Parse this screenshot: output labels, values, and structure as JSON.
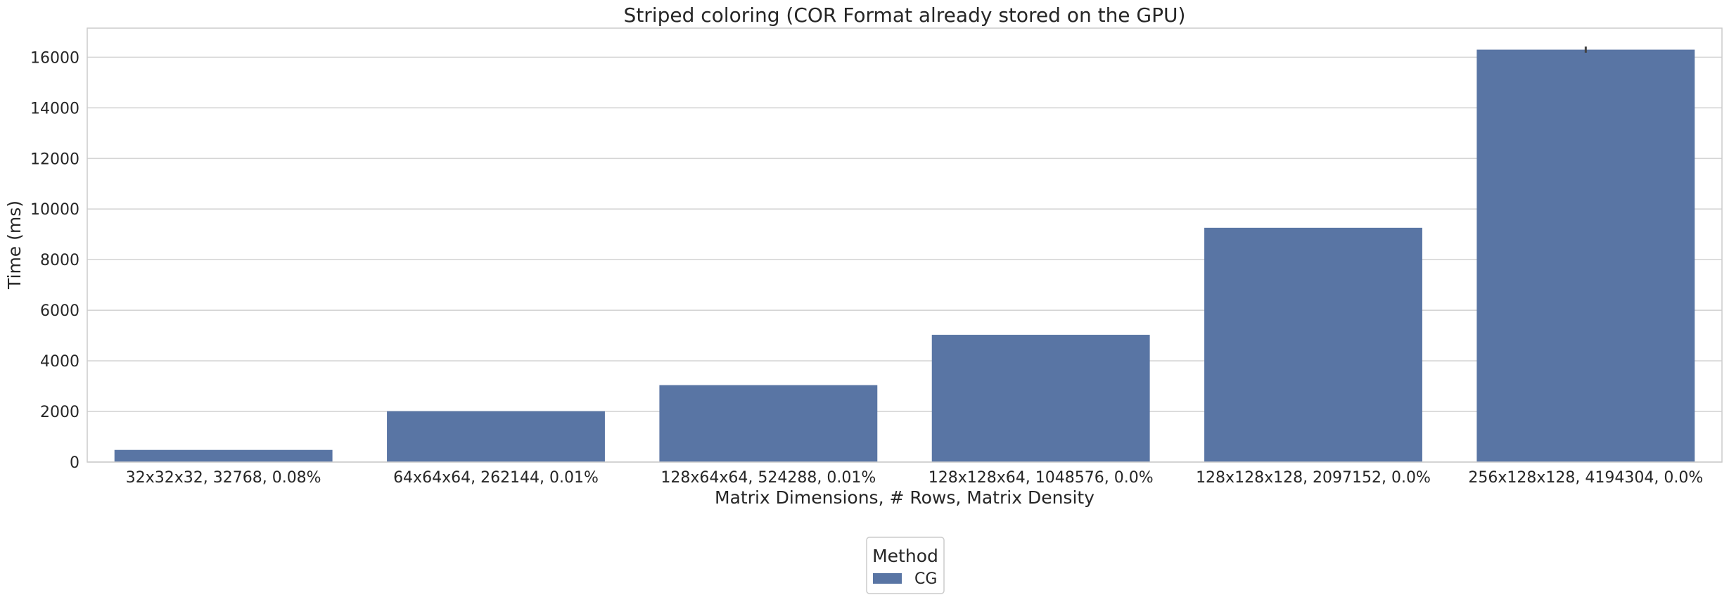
{
  "chart_data": {
    "type": "bar",
    "title": "Striped coloring (COR Format already stored on the GPU)",
    "xlabel": "Matrix Dimensions, # Rows, Matrix Density",
    "ylabel": "Time (ms)",
    "categories": [
      "32x32x32, 32768, 0.08%",
      "64x64x64, 262144, 0.01%",
      "128x64x64, 524288, 0.01%",
      "128x128x64, 1048576, 0.0%",
      "128x128x128, 2097152, 0.0%",
      "256x128x128, 4194304, 0.0%"
    ],
    "series": [
      {
        "name": "CG",
        "values": [
          480,
          2010,
          3040,
          5030,
          9260,
          16300
        ],
        "error": [
          0,
          0,
          0,
          0,
          0,
          120
        ],
        "color": "#5975a4"
      }
    ],
    "ylim": [
      0,
      17150
    ],
    "yticks": [
      0,
      2000,
      4000,
      6000,
      8000,
      10000,
      12000,
      14000,
      16000
    ],
    "grid": true,
    "legend": {
      "title": "Method",
      "placement": "bottom-center, below the plot"
    },
    "colors": {
      "grid": "#d5d5d5",
      "axes_edge": "#cccccc",
      "text": "#262626"
    }
  }
}
